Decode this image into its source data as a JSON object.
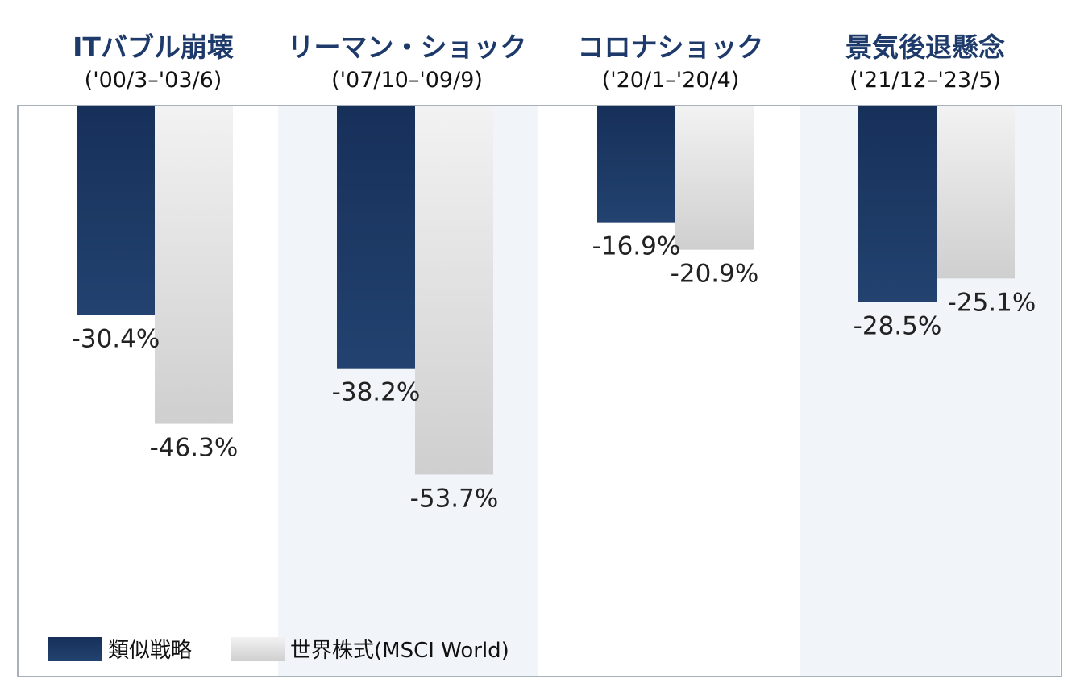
{
  "colors": {
    "similar_strategy": "#1b3461",
    "world_equity": "#d9d9d9",
    "panel_shade": "#f1f5fa",
    "frame": "#a8b0bb",
    "title": "#1d3a6b"
  },
  "chart_data": {
    "type": "bar",
    "categories": [
      {
        "title": "ITバブル崩壊",
        "period": "('00/3–'03/6)",
        "shaded": false
      },
      {
        "title": "リーマン・ショック",
        "period": "('07/10–'09/9)",
        "shaded": true
      },
      {
        "title": "コロナショック",
        "period": "('20/1–'20/4)",
        "shaded": false
      },
      {
        "title": "景気後退懸念",
        "period": "('21/12–'23/5)",
        "shaded": true
      }
    ],
    "series": [
      {
        "name": "類似戦略",
        "values": [
          -30.4,
          -38.2,
          -16.9,
          -28.5
        ],
        "labels": [
          "-30.4%",
          "-38.2%",
          "-16.9%",
          "-28.5%"
        ]
      },
      {
        "name": "世界株式(MSCI World)",
        "values": [
          -46.3,
          -53.7,
          -20.9,
          -25.1
        ],
        "labels": [
          "-46.3%",
          "-53.7%",
          "-20.9%",
          "-25.1%"
        ]
      }
    ],
    "ylim": [
      -70,
      0
    ],
    "grid": false,
    "legend": "bottom-left"
  }
}
